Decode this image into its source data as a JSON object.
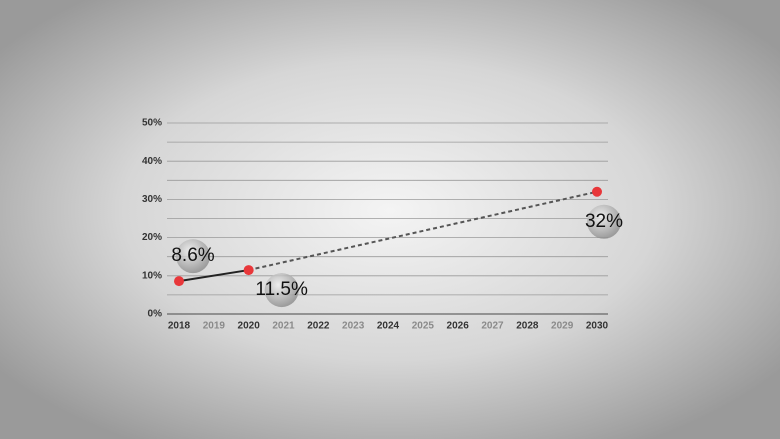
{
  "chart_data": {
    "type": "line",
    "x": [
      2018,
      2020,
      2030
    ],
    "values": [
      8.6,
      11.5,
      32
    ],
    "value_labels": [
      "8.6%",
      "11.5%",
      "32%"
    ],
    "line_styles": [
      "solid",
      "dashed"
    ],
    "color": "#222222",
    "marker_color": "#e8373a",
    "xlim": [
      2018,
      2030
    ],
    "xticks": [
      2018,
      2019,
      2020,
      2021,
      2022,
      2023,
      2024,
      2025,
      2026,
      2027,
      2028,
      2029,
      2030
    ],
    "ylim": [
      0,
      50
    ],
    "yticks": [
      {
        "value": 0,
        "label": "0%"
      },
      {
        "value": 10,
        "label": "10%"
      },
      {
        "value": 20,
        "label": "20%"
      },
      {
        "value": 30,
        "label": "30%"
      },
      {
        "value": 40,
        "label": "40%"
      },
      {
        "value": 50,
        "label": "50%"
      }
    ],
    "minor_yticks": [
      5,
      15,
      25,
      35,
      45
    ],
    "grid": true
  }
}
